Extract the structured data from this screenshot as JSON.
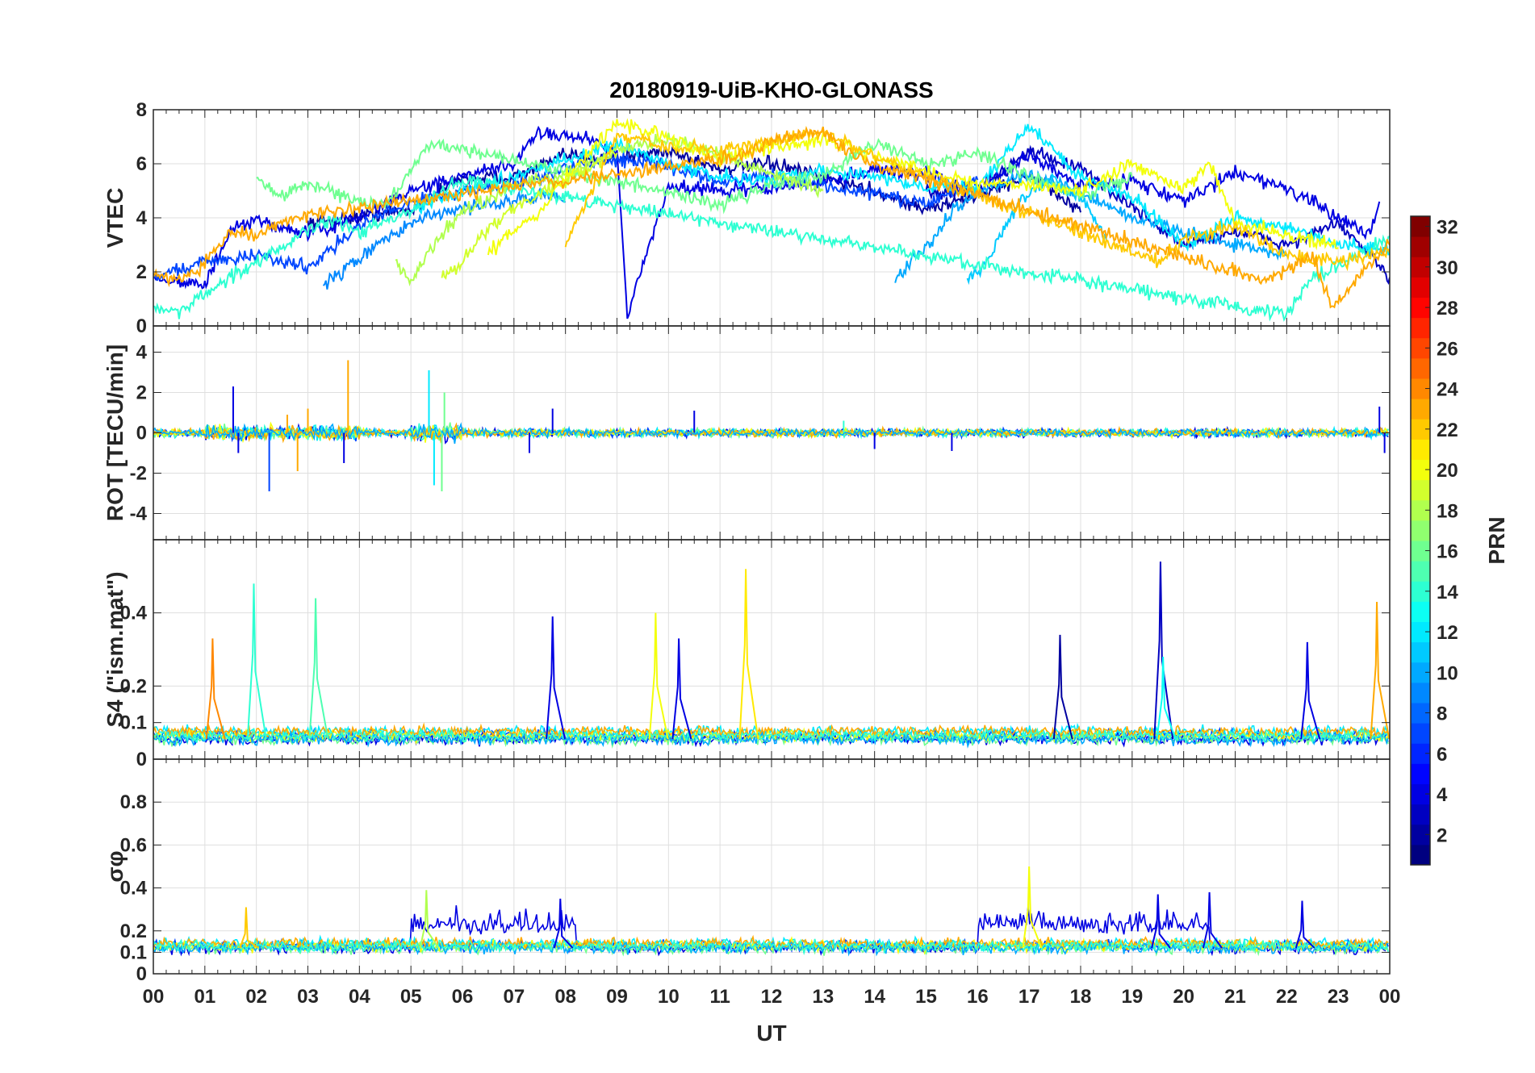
{
  "chart_data": {
    "type": "line",
    "title": "20180919-UiB-KHO-GLONASS",
    "xlabel": "UT",
    "x_ticks": [
      "00",
      "01",
      "02",
      "03",
      "04",
      "05",
      "06",
      "07",
      "08",
      "09",
      "10",
      "11",
      "12",
      "13",
      "14",
      "15",
      "16",
      "17",
      "18",
      "19",
      "20",
      "21",
      "22",
      "23",
      "00"
    ],
    "xlim": [
      0,
      24
    ],
    "grid": true,
    "colorbar": {
      "label": "PRN",
      "range": [
        1,
        32
      ],
      "ticks": [
        "2",
        "4",
        "6",
        "8",
        "10",
        "12",
        "14",
        "16",
        "18",
        "20",
        "22",
        "24",
        "26",
        "28",
        "30",
        "32"
      ],
      "colormap": "jet"
    },
    "panels": [
      {
        "name": "vtec",
        "ylabel": "VTEC",
        "ylim": [
          0,
          8
        ],
        "yticks": [
          0,
          2,
          4,
          6,
          8
        ],
        "ytick_labels": [
          "0",
          "2",
          "4",
          "6",
          "8"
        ],
        "series": [
          {
            "prn": 2,
            "x": [
              3.0,
              5.0,
              6.0,
              7.0,
              8.0,
              9.0,
              10.0,
              11.0,
              12.0,
              13.0,
              14.0,
              15.0,
              16.0,
              17.0,
              18.0
            ],
            "y": [
              3.8,
              4.3,
              5.5,
              5.5,
              6.3,
              6.2,
              6.5,
              5.8,
              6.0,
              5.5,
              5.0,
              4.3,
              4.8,
              5.6,
              4.2
            ]
          },
          {
            "prn": 3,
            "x": [
              15.0,
              16.0,
              17.0,
              18.0,
              19.0,
              20.0,
              21.0,
              22.0,
              23.0,
              24.0
            ],
            "y": [
              4.9,
              5.0,
              6.5,
              5.8,
              4.4,
              3.0,
              3.5,
              3.0,
              3.8,
              1.8
            ]
          },
          {
            "prn": 4,
            "x": [
              0.0,
              1.0,
              1.5,
              2.0,
              3.0,
              4.0,
              5.0,
              6.0,
              7.0,
              7.5,
              8.5,
              9.0,
              9.2,
              10.0,
              11.0,
              12.0,
              13.0,
              14.0,
              15.0,
              16.0,
              17.0,
              18.0,
              19.0,
              20.0,
              21.0,
              22.0,
              23.0,
              23.6,
              23.8
            ],
            "y": [
              1.8,
              1.5,
              3.5,
              3.9,
              3.4,
              4.0,
              5.0,
              5.5,
              6.0,
              7.2,
              6.9,
              6.5,
              0.4,
              5.2,
              5.0,
              5.1,
              5.3,
              5.8,
              5.6,
              5.0,
              6.3,
              5.2,
              5.4,
              4.6,
              5.7,
              5.1,
              4.0,
              3.4,
              4.6
            ]
          },
          {
            "prn": 7,
            "x": [
              0.0,
              1.0,
              2.0,
              3.0,
              4.0,
              5.0,
              6.0,
              7.0,
              8.0,
              9.0,
              10.0,
              11.0,
              12.0,
              13.0,
              14.0,
              15.0,
              16.0
            ],
            "y": [
              1.8,
              2.4,
              2.6,
              2.2,
              3.7,
              4.6,
              5.0,
              5.2,
              5.8,
              6.2,
              5.9,
              5.4,
              5.5,
              5.2,
              4.9,
              4.5,
              5.4
            ]
          },
          {
            "prn": 9,
            "x": [
              3.3,
              3.8,
              4.5,
              5.0,
              6.0,
              7.0,
              7.6,
              8.0
            ],
            "y": [
              1.5,
              2.2,
              3.2,
              3.8,
              4.4,
              4.6,
              4.9,
              4.6
            ]
          },
          {
            "prn": 10,
            "x": [
              14.4,
              14.8,
              15.1,
              15.5,
              16.0,
              17.0,
              18.0,
              19.0,
              20.0,
              21.0,
              22.0
            ],
            "y": [
              1.8,
              2.6,
              3.0,
              4.3,
              5.0,
              5.6,
              4.9,
              4.0,
              3.5,
              3.0,
              2.6
            ]
          },
          {
            "prn": 11,
            "x": [
              15.8,
              16.2,
              16.6,
              17.0,
              17.5,
              18.0,
              18.5
            ],
            "y": [
              1.6,
              2.5,
              3.8,
              5.0,
              5.3,
              4.8,
              3.2
            ]
          },
          {
            "prn": 12,
            "x": [
              5.0,
              6.0,
              7.0,
              8.0,
              9.0,
              10.0,
              11.0,
              12.0,
              13.0,
              14.0,
              15.0,
              16.0,
              17.0,
              18.0,
              19.0,
              20.0,
              21.0,
              22.0,
              23.0,
              24.0
            ],
            "y": [
              4.3,
              5.0,
              5.5,
              6.2,
              6.7,
              6.0,
              5.5,
              5.4,
              5.8,
              5.5,
              5.2,
              5.1,
              7.4,
              5.5,
              4.8,
              3.0,
              4.0,
              3.6,
              3.0,
              2.8
            ]
          },
          {
            "prn": 14,
            "x": [
              0.0,
              0.5,
              1.0,
              2.0,
              3.0,
              3.5,
              4.0,
              5.0,
              5.5,
              6.0,
              22.0,
              22.5,
              23.0,
              24.0
            ],
            "y": [
              0.7,
              0.5,
              1.2,
              2.4,
              3.5,
              3.9,
              3.5,
              4.2,
              4.9,
              5.4,
              0.4,
              1.8,
              2.2,
              3.3
            ]
          },
          {
            "prn": 16,
            "x": [
              2.0,
              2.5,
              3.0,
              3.5,
              4.0,
              4.5,
              5.0,
              5.4,
              11.0,
              12.0,
              13.0,
              14.0,
              15.0,
              16.0,
              17.0,
              18.0,
              19.0
            ],
            "y": [
              5.4,
              4.8,
              5.3,
              5.0,
              4.6,
              4.4,
              5.8,
              6.8,
              4.5,
              5.2,
              5.6,
              6.8,
              6.0,
              6.4,
              5.5,
              4.8,
              5.5
            ]
          },
          {
            "prn": 18,
            "x": [
              4.7,
              5.0,
              5.5,
              6.0,
              7.0,
              8.0,
              9.0,
              10.0,
              11.0,
              12.0,
              13.0
            ],
            "y": [
              2.4,
              1.7,
              3.2,
              4.2,
              5.2,
              5.6,
              6.5,
              6.9,
              6.3,
              5.6,
              5.0
            ]
          },
          {
            "prn": 19,
            "x": [
              5.6,
              6.0,
              6.5,
              7.0,
              8.0,
              9.0
            ],
            "y": [
              1.8,
              2.4,
              3.6,
              4.4,
              5.4,
              6.4
            ]
          },
          {
            "prn": 20,
            "x": [
              6.5,
              7.0,
              7.5,
              8.0,
              9.0,
              10.0,
              11.0,
              12.0,
              13.0,
              14.0,
              15.0,
              16.0,
              17.0,
              18.0,
              19.0,
              20.0,
              20.5,
              21.0,
              22.0,
              23.0
            ],
            "y": [
              2.7,
              3.5,
              4.2,
              5.5,
              7.5,
              7.0,
              6.2,
              6.6,
              6.9,
              6.3,
              5.7,
              5.3,
              5.2,
              5.0,
              6.0,
              5.1,
              6.0,
              3.8,
              3.4,
              2.9
            ]
          },
          {
            "prn": 22,
            "x": [
              8.0,
              8.5,
              9.0,
              10.0,
              11.0,
              12.0,
              13.0,
              14.0,
              19.5,
              20.0,
              21.0,
              22.0,
              23.0,
              24.0
            ],
            "y": [
              3.0,
              5.0,
              7.0,
              6.6,
              6.5,
              6.8,
              7.2,
              6.3,
              2.4,
              3.2,
              3.7,
              2.6,
              2.4,
              2.7
            ]
          },
          {
            "prn": 23,
            "x": [
              0.0,
              0.5,
              1.0,
              1.5,
              2.0,
              2.5,
              3.0,
              11.5,
              12.0,
              12.5,
              13.0,
              13.5,
              14.0,
              21.5,
              22.0,
              22.5,
              22.9,
              23.5,
              24.0
            ],
            "y": [
              2.0,
              1.7,
              2.3,
              3.5,
              3.3,
              3.9,
              4.1,
              6.3,
              6.9,
              7.1,
              7.2,
              6.4,
              6.0,
              1.7,
              2.0,
              2.6,
              0.6,
              2.0,
              3.0
            ]
          }
        ]
      },
      {
        "name": "rot",
        "ylabel": "ROT [TECU/min]",
        "ylim": [
          -5.3,
          5.3
        ],
        "yticks": [
          -4,
          -2,
          0,
          2,
          4
        ],
        "ytick_labels": [
          "-4",
          "-2",
          "0",
          "2",
          "4"
        ],
        "spikes": [
          {
            "prn": 4,
            "x": 1.55,
            "y": 2.3
          },
          {
            "prn": 4,
            "x": 1.65,
            "y": -1.0
          },
          {
            "prn": 7,
            "x": 2.25,
            "y": -2.9
          },
          {
            "prn": 23,
            "x": 2.6,
            "y": 0.9
          },
          {
            "prn": 23,
            "x": 2.8,
            "y": -1.9
          },
          {
            "prn": 23,
            "x": 3.0,
            "y": 1.2
          },
          {
            "prn": 23,
            "x": 3.78,
            "y": 3.6
          },
          {
            "prn": 4,
            "x": 3.7,
            "y": -1.5
          },
          {
            "prn": 12,
            "x": 5.35,
            "y": 3.1
          },
          {
            "prn": 12,
            "x": 5.45,
            "y": -2.6
          },
          {
            "prn": 16,
            "x": 5.6,
            "y": -2.9
          },
          {
            "prn": 16,
            "x": 5.65,
            "y": 2.0
          },
          {
            "prn": 4,
            "x": 7.3,
            "y": -1.0
          },
          {
            "prn": 4,
            "x": 7.75,
            "y": 1.2
          },
          {
            "prn": 4,
            "x": 10.5,
            "y": 1.1
          },
          {
            "prn": 14,
            "x": 13.4,
            "y": 0.6
          },
          {
            "prn": 4,
            "x": 14.0,
            "y": -0.8
          },
          {
            "prn": 4,
            "x": 15.5,
            "y": -0.9
          },
          {
            "prn": 4,
            "x": 23.8,
            "y": 1.3
          },
          {
            "prn": 4,
            "x": 23.9,
            "y": -1.0
          }
        ]
      },
      {
        "name": "s4",
        "ylabel": "S4 (\"ism.mat\")",
        "ylim": [
          0,
          0.6
        ],
        "yticks": [
          0,
          0.1,
          0.2,
          0.4
        ],
        "ytick_labels": [
          "0",
          "0.1",
          "0.2",
          "0.4"
        ],
        "peaks": [
          {
            "prn": 24,
            "x": 1.15,
            "y": 0.33
          },
          {
            "prn": 14,
            "x": 1.95,
            "y": 0.48
          },
          {
            "prn": 15,
            "x": 3.15,
            "y": 0.44
          },
          {
            "prn": 4,
            "x": 7.75,
            "y": 0.39
          },
          {
            "prn": 20,
            "x": 9.75,
            "y": 0.4
          },
          {
            "prn": 4,
            "x": 10.2,
            "y": 0.33
          },
          {
            "prn": 21,
            "x": 11.5,
            "y": 0.52
          },
          {
            "prn": 2,
            "x": 17.6,
            "y": 0.34
          },
          {
            "prn": 3,
            "x": 19.55,
            "y": 0.54
          },
          {
            "prn": 13,
            "x": 19.6,
            "y": 0.28
          },
          {
            "prn": 4,
            "x": 22.4,
            "y": 0.32
          },
          {
            "prn": 23,
            "x": 23.75,
            "y": 0.43
          }
        ]
      },
      {
        "name": "sigma_phi",
        "ylabel": "σφ",
        "ylim": [
          0,
          1
        ],
        "yticks": [
          0,
          0.1,
          0.2,
          0.4,
          0.6,
          0.8
        ],
        "ytick_labels": [
          "0",
          "0.1",
          "0.2",
          "0.4",
          "0.6",
          "0.8"
        ],
        "peaks": [
          {
            "prn": 20,
            "x": 17.0,
            "y": 0.5
          },
          {
            "prn": 18,
            "x": 5.3,
            "y": 0.39
          },
          {
            "prn": 4,
            "x": 7.9,
            "y": 0.35
          },
          {
            "prn": 22,
            "x": 1.8,
            "y": 0.31
          },
          {
            "prn": 4,
            "x": 20.5,
            "y": 0.38
          },
          {
            "prn": 4,
            "x": 22.3,
            "y": 0.34
          },
          {
            "prn": 4,
            "x": 19.5,
            "y": 0.37
          }
        ]
      }
    ]
  }
}
